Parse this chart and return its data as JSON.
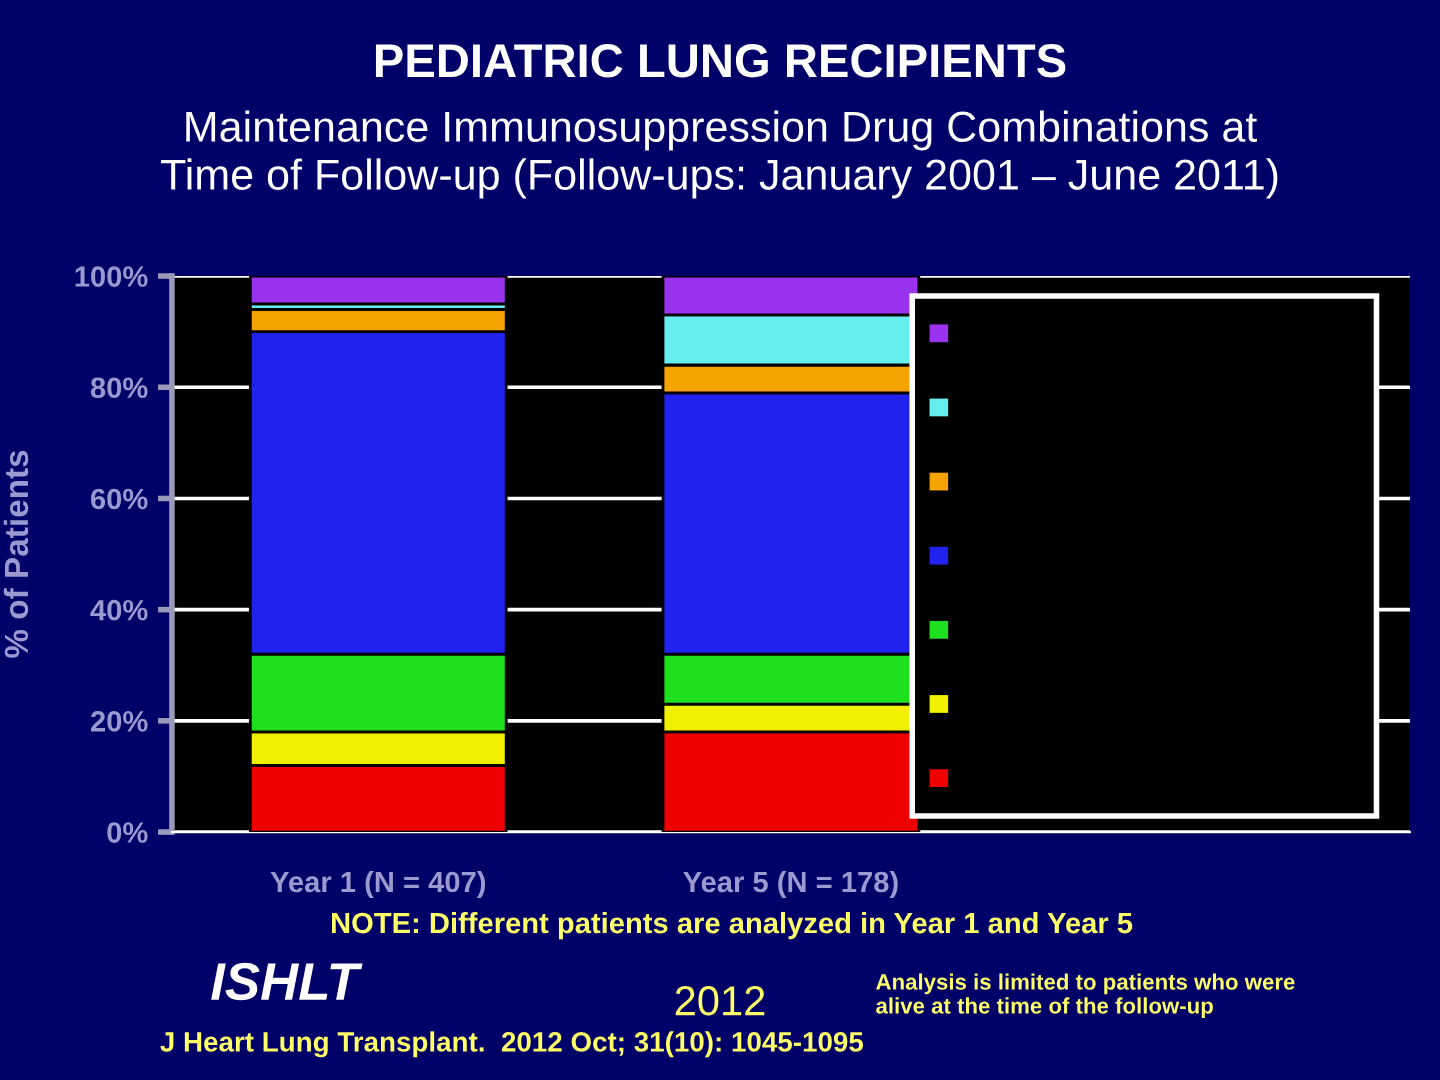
{
  "chart_data": {
    "type": "bar",
    "stacked": true,
    "title": "PEDIATRIC LUNG RECIPIENTS",
    "subtitle": "Maintenance Immunosuppression Drug Combinations at\nTime of Follow-up (Follow-ups: January 2001 – June 2011)",
    "ylabel": "% of Patients",
    "categories": [
      "Year 1 (N = 407)",
      "Year 5 (N = 178)"
    ],
    "series": [
      {
        "color": "#ee0000",
        "values": [
          12,
          18
        ]
      },
      {
        "color": "#f0f000",
        "values": [
          6,
          5
        ]
      },
      {
        "color": "#1ee01e",
        "values": [
          14,
          9
        ]
      },
      {
        "color": "#2222ee",
        "values": [
          58,
          47
        ]
      },
      {
        "color": "#f5a300",
        "values": [
          4,
          5
        ]
      },
      {
        "color": "#66eeee",
        "values": [
          1,
          9
        ]
      },
      {
        "color": "#9933ee",
        "values": [
          5,
          7
        ]
      }
    ],
    "ylim": [
      0,
      100
    ],
    "yticks": [
      {
        "value": 0,
        "label": "0%"
      },
      {
        "value": 20,
        "label": "20%"
      },
      {
        "value": 40,
        "label": "40%"
      },
      {
        "value": 60,
        "label": "60%"
      },
      {
        "value": 80,
        "label": "80%"
      },
      {
        "value": 100,
        "label": "100%"
      }
    ],
    "grid": "y",
    "annotations": [
      "NOTE: Different patients are analyzed in Year 1 and Year 5",
      "ISHLT",
      "2012",
      "Analysis is limited to patients who were\nalive at the time of the follow-up",
      "J Heart Lung Transplant.  2012 Oct; 31(10): 1045-1095"
    ]
  }
}
